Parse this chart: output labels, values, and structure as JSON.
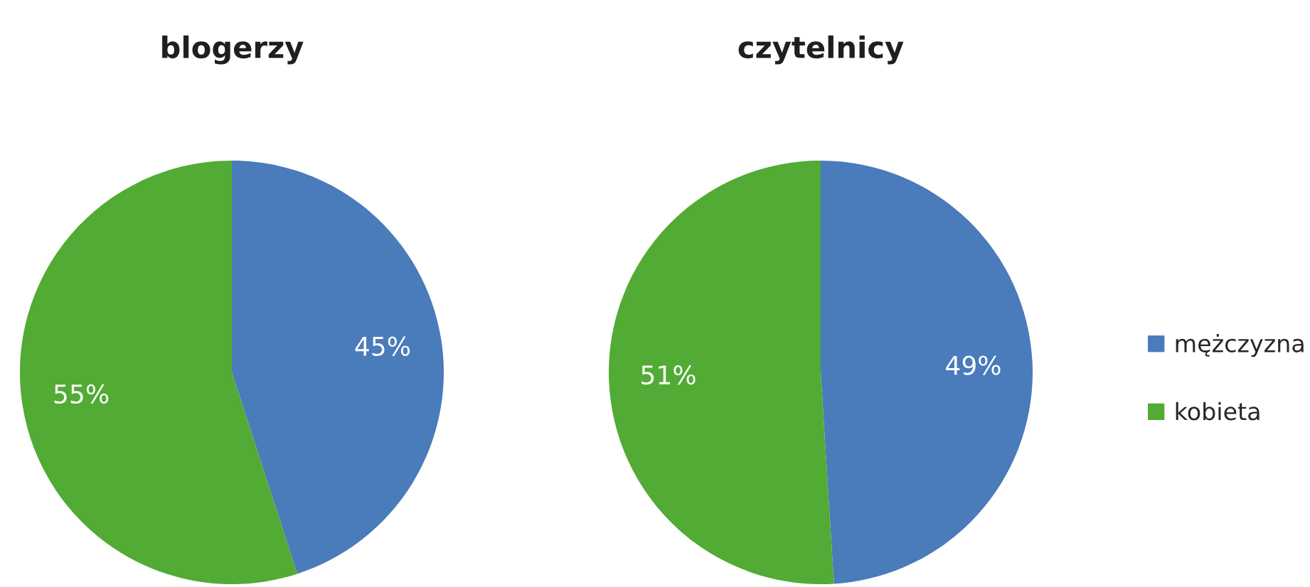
{
  "chart_data": [
    {
      "type": "pie",
      "title": "blogerzy",
      "categories": [
        "mężczyzna",
        "kobieta"
      ],
      "values": [
        45,
        55
      ],
      "colors": [
        "#4a7bba",
        "#52ab34"
      ],
      "value_labels": [
        "45%",
        "55%"
      ],
      "legend": "right"
    },
    {
      "type": "pie",
      "title": "czytelnicy",
      "categories": [
        null,
        null
      ],
      "values": [
        49,
        51
      ],
      "colors": [
        "#4a7bba",
        "#52ab34"
      ],
      "value_labels": [
        "49%",
        "51%"
      ]
    }
  ]
}
